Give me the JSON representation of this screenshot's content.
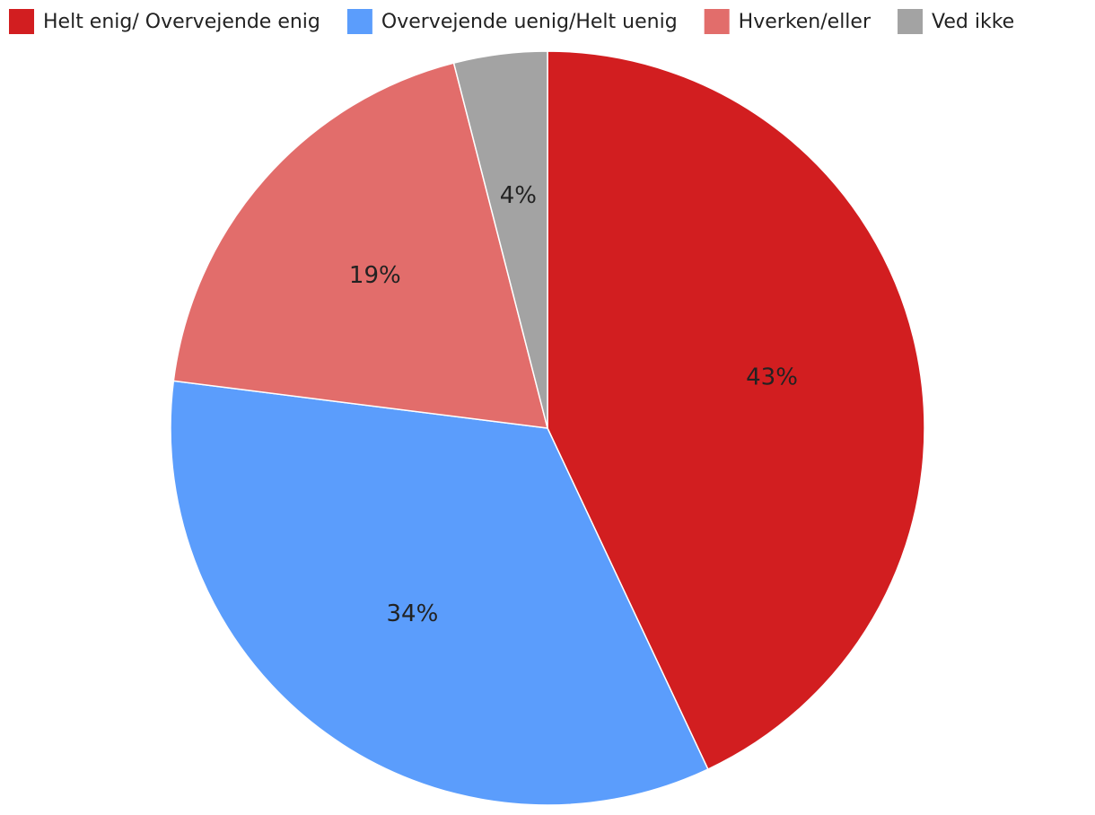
{
  "chart_data": {
    "type": "pie",
    "categories": [
      "Helt enig/ Overvejende enig",
      "Overvejende uenig/Helt uenig",
      "Hverken/eller",
      "Ved ikke"
    ],
    "values": [
      43,
      34,
      19,
      4
    ],
    "value_labels": [
      "43%",
      "34%",
      "19%",
      "4%"
    ],
    "colors": [
      "#d21e20",
      "#5b9dfc",
      "#e26d6b",
      "#a3a3a3"
    ],
    "legend": "top-left"
  }
}
